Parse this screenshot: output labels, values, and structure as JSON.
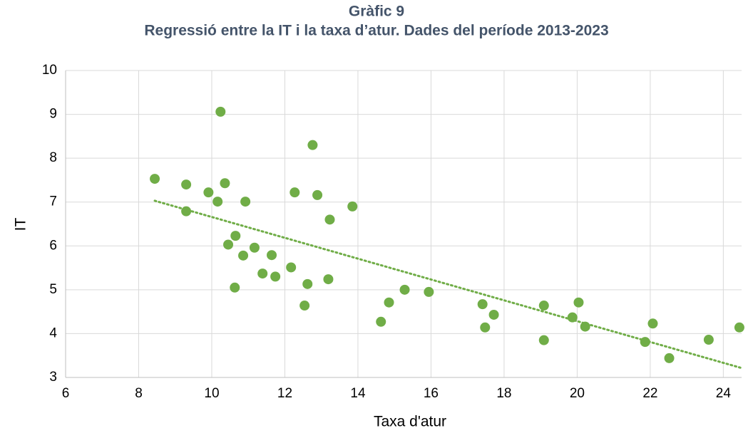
{
  "chart_data": {
    "type": "scatter",
    "title": "Gràfic 9",
    "subtitle": "Regressió entre la IT i la taxa d’atur. Dades del període 2013-2023",
    "x_label": "Taxa d'atur",
    "y_label": "IT",
    "color": "#70ad47",
    "grid": true,
    "xlim": [
      6,
      24.5
    ],
    "ylim": [
      3,
      10
    ],
    "xticks": [
      6,
      8,
      10,
      12,
      14,
      16,
      18,
      20,
      22,
      24
    ],
    "yticks": [
      3,
      4,
      5,
      6,
      7,
      8,
      9,
      10
    ],
    "x": [
      8.44,
      9.3,
      9.3,
      9.91,
      10.16,
      10.24,
      10.36,
      10.45,
      10.65,
      10.63,
      10.86,
      10.92,
      11.17,
      11.39,
      11.64,
      11.74,
      12.17,
      12.27,
      12.54,
      12.62,
      12.76,
      12.89,
      13.19,
      13.23,
      13.85,
      14.63,
      14.85,
      15.28,
      15.94,
      17.41,
      17.48,
      17.72,
      19.09,
      19.09,
      19.87,
      20.04,
      20.22,
      21.86,
      22.07,
      22.52,
      23.6,
      24.44
    ],
    "values": [
      7.53,
      7.4,
      6.79,
      7.22,
      7.01,
      9.06,
      7.43,
      6.03,
      6.23,
      5.05,
      5.78,
      7.01,
      5.96,
      5.37,
      5.79,
      5.3,
      5.51,
      7.22,
      4.64,
      5.13,
      8.3,
      7.16,
      5.24,
      6.6,
      6.9,
      4.27,
      4.71,
      5.0,
      4.95,
      4.67,
      4.14,
      4.43,
      4.64,
      3.85,
      4.37,
      4.71,
      4.16,
      3.81,
      4.23,
      3.44,
      3.86,
      4.14
    ],
    "trendline": {
      "x": [
        8.44,
        24.52
      ],
      "values": [
        7.03,
        3.21
      ]
    }
  }
}
